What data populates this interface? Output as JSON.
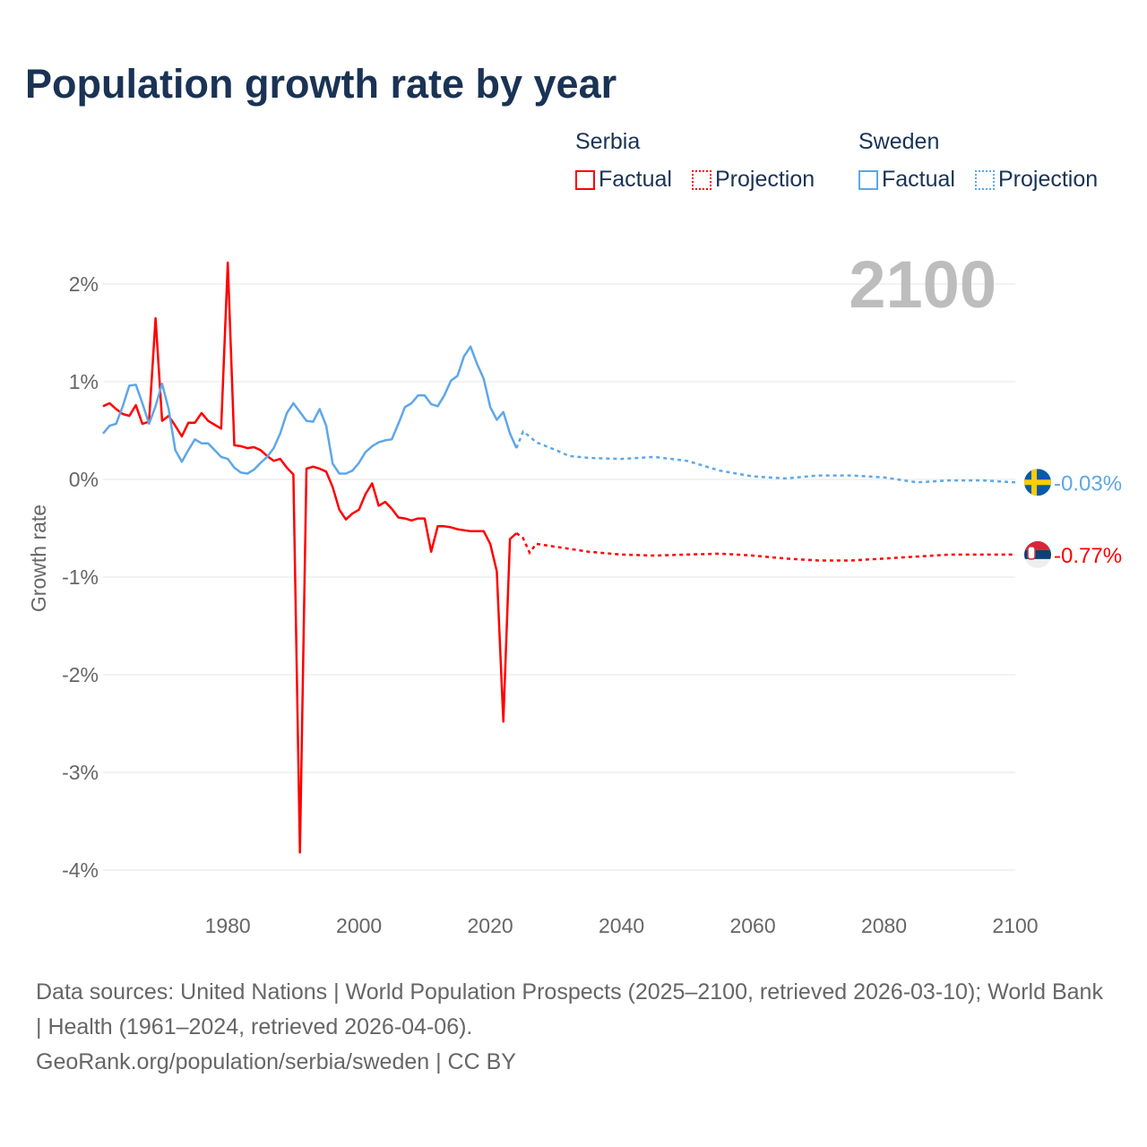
{
  "title": "Population growth rate by year",
  "legend": {
    "groups": [
      {
        "name": "Serbia",
        "factual": "Factual",
        "projection": "Projection",
        "color": "#ff0000"
      },
      {
        "name": "Sweden",
        "factual": "Factual",
        "projection": "Projection",
        "color": "#5ea7e8"
      }
    ]
  },
  "footer": {
    "sources": "Data sources: United Nations | World Population Prospects (2025–2100, retrieved 2026-03-10); World Bank | Health (1961–2024, retrieved 2026-04-06).",
    "credit": "GeoRank.org/population/serbia/sweden | CC BY"
  },
  "chart_data": {
    "type": "line",
    "title": "Population growth rate by year",
    "ylabel": "Growth rate",
    "xlabel": "",
    "year_label": "2100",
    "xlim": [
      1961,
      2100
    ],
    "ylim": [
      -4.3,
      2.3
    ],
    "xticks": [
      1980,
      2000,
      2020,
      2040,
      2060,
      2080,
      2100
    ],
    "yticks": [
      {
        "v": 2,
        "label": "2%"
      },
      {
        "v": 1,
        "label": "1%"
      },
      {
        "v": 0,
        "label": "0%"
      },
      {
        "v": -1,
        "label": "-1%"
      },
      {
        "v": -2,
        "label": "-2%"
      },
      {
        "v": -3,
        "label": "-3%"
      },
      {
        "v": -4,
        "label": "-4%"
      }
    ],
    "grid": true,
    "series": [
      {
        "name": "Serbia",
        "color": "#ff0000",
        "end_label": "-0.77%",
        "factual": {
          "start": 1961,
          "values": [
            0.75,
            0.78,
            0.72,
            0.67,
            0.65,
            0.76,
            0.57,
            0.59,
            1.65,
            0.6,
            0.65,
            0.55,
            0.44,
            0.58,
            0.58,
            0.68,
            0.6,
            0.56,
            0.52,
            2.22,
            0.35,
            0.34,
            0.32,
            0.33,
            0.3,
            0.24,
            0.19,
            0.21,
            0.12,
            0.05,
            -3.82,
            0.11,
            0.13,
            0.11,
            0.08,
            -0.08,
            -0.31,
            -0.41,
            -0.35,
            -0.31,
            -0.15,
            -0.04,
            -0.27,
            -0.23,
            -0.3,
            -0.39,
            -0.4,
            -0.42,
            -0.4,
            -0.4,
            -0.74,
            -0.48,
            -0.48,
            -0.49,
            -0.51,
            -0.52,
            -0.53,
            -0.53,
            -0.53,
            -0.66,
            -0.94,
            -2.48,
            -0.61,
            -0.55
          ]
        },
        "projection": {
          "x": [
            2024,
            2025,
            2026,
            2027,
            2030,
            2035,
            2040,
            2045,
            2050,
            2055,
            2060,
            2065,
            2070,
            2075,
            2080,
            2085,
            2090,
            2095,
            2100
          ],
          "values": [
            -0.55,
            -0.6,
            -0.75,
            -0.66,
            -0.69,
            -0.74,
            -0.77,
            -0.78,
            -0.77,
            -0.76,
            -0.78,
            -0.81,
            -0.83,
            -0.83,
            -0.81,
            -0.79,
            -0.77,
            -0.77,
            -0.77
          ]
        }
      },
      {
        "name": "Sweden",
        "color": "#5ea7e8",
        "end_label": "-0.03%",
        "factual": {
          "start": 1961,
          "values": [
            0.47,
            0.55,
            0.57,
            0.75,
            0.96,
            0.97,
            0.78,
            0.57,
            0.75,
            0.98,
            0.72,
            0.3,
            0.18,
            0.3,
            0.41,
            0.37,
            0.37,
            0.3,
            0.23,
            0.21,
            0.12,
            0.07,
            0.06,
            0.1,
            0.17,
            0.23,
            0.32,
            0.47,
            0.68,
            0.78,
            0.69,
            0.6,
            0.59,
            0.72,
            0.55,
            0.16,
            0.06,
            0.06,
            0.09,
            0.17,
            0.28,
            0.34,
            0.38,
            0.4,
            0.41,
            0.57,
            0.74,
            0.78,
            0.86,
            0.86,
            0.77,
            0.75,
            0.86,
            1.01,
            1.06,
            1.26,
            1.36,
            1.18,
            1.03,
            0.74,
            0.61,
            0.69,
            0.47,
            0.32
          ]
        },
        "projection": {
          "x": [
            2024,
            2025,
            2026,
            2027,
            2030,
            2032,
            2035,
            2040,
            2045,
            2050,
            2055,
            2060,
            2065,
            2070,
            2075,
            2080,
            2085,
            2090,
            2095,
            2100
          ],
          "values": [
            0.32,
            0.49,
            0.44,
            0.38,
            0.3,
            0.24,
            0.22,
            0.21,
            0.23,
            0.19,
            0.09,
            0.03,
            0.01,
            0.04,
            0.04,
            0.02,
            -0.03,
            -0.01,
            -0.01,
            -0.03
          ]
        }
      }
    ]
  }
}
